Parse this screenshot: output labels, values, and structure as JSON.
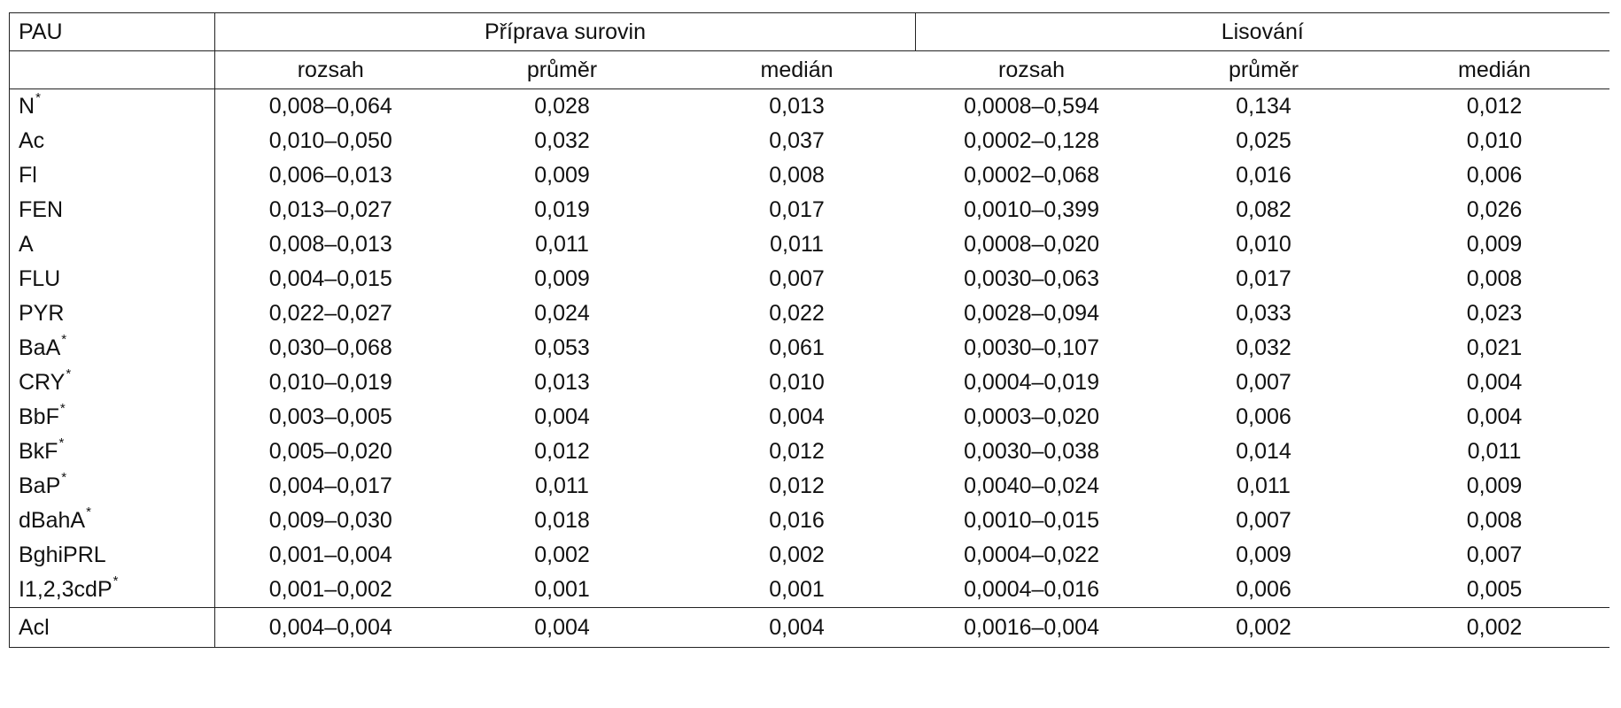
{
  "table": {
    "corner_label": "PAU",
    "group_headers": [
      "Příprava surovin",
      "Lisování"
    ],
    "sub_headers": [
      "rozsah",
      "průměr",
      "medián",
      "rozsah",
      "průměr",
      "medián"
    ],
    "rows": [
      {
        "name": "N",
        "star": "*",
        "cells": [
          "0,008–0,064",
          "0,028",
          "0,013",
          "0,0008–0,594",
          "0,134",
          "0,012"
        ]
      },
      {
        "name": "Ac",
        "star": "",
        "cells": [
          "0,010–0,050",
          "0,032",
          "0,037",
          "0,0002–0,128",
          "0,025",
          "0,010"
        ]
      },
      {
        "name": "Fl",
        "star": "",
        "cells": [
          "0,006–0,013",
          "0,009",
          "0,008",
          "0,0002–0,068",
          "0,016",
          "0,006"
        ]
      },
      {
        "name": "FEN",
        "star": "",
        "cells": [
          "0,013–0,027",
          "0,019",
          "0,017",
          "0,0010–0,399",
          "0,082",
          "0,026"
        ]
      },
      {
        "name": "A",
        "star": "",
        "cells": [
          "0,008–0,013",
          "0,011",
          "0,011",
          "0,0008–0,020",
          "0,010",
          "0,009"
        ]
      },
      {
        "name": "FLU",
        "star": "",
        "cells": [
          "0,004–0,015",
          "0,009",
          "0,007",
          "0,0030–0,063",
          "0,017",
          "0,008"
        ]
      },
      {
        "name": "PYR",
        "star": "",
        "cells": [
          "0,022–0,027",
          "0,024",
          "0,022",
          "0,0028–0,094",
          "0,033",
          "0,023"
        ]
      },
      {
        "name": "BaA",
        "star": "*",
        "cells": [
          "0,030–0,068",
          "0,053",
          "0,061",
          "0,0030–0,107",
          "0,032",
          "0,021"
        ]
      },
      {
        "name": "CRY",
        "star": "*",
        "cells": [
          "0,010–0,019",
          "0,013",
          "0,010",
          "0,0004–0,019",
          "0,007",
          "0,004"
        ]
      },
      {
        "name": "BbF",
        "star": "*",
        "cells": [
          "0,003–0,005",
          "0,004",
          "0,004",
          "0,0003–0,020",
          "0,006",
          "0,004"
        ]
      },
      {
        "name": "BkF",
        "star": "*",
        "cells": [
          "0,005–0,020",
          "0,012",
          "0,012",
          "0,0030–0,038",
          "0,014",
          "0,011"
        ]
      },
      {
        "name": "BaP",
        "star": "*",
        "cells": [
          "0,004–0,017",
          "0,011",
          "0,012",
          "0,0040–0,024",
          "0,011",
          "0,009"
        ]
      },
      {
        "name": "dBahA",
        "star": "*",
        "cells": [
          "0,009–0,030",
          "0,018",
          "0,016",
          "0,0010–0,015",
          "0,007",
          "0,008"
        ]
      },
      {
        "name": "BghiPRL",
        "star": "",
        "cells": [
          "0,001–0,004",
          "0,002",
          "0,002",
          "0,0004–0,022",
          "0,009",
          "0,007"
        ]
      },
      {
        "name": "I1,2,3cdP",
        "star": "*",
        "cells": [
          "0,001–0,002",
          "0,001",
          "0,001",
          "0,0004–0,016",
          "0,006",
          "0,005"
        ]
      }
    ],
    "last_row": {
      "name": "Acl",
      "star": "",
      "cells": [
        "0,004–0,004",
        "0,004",
        "0,004",
        "0,0016–0,004",
        "0,002",
        "0,002"
      ]
    }
  }
}
